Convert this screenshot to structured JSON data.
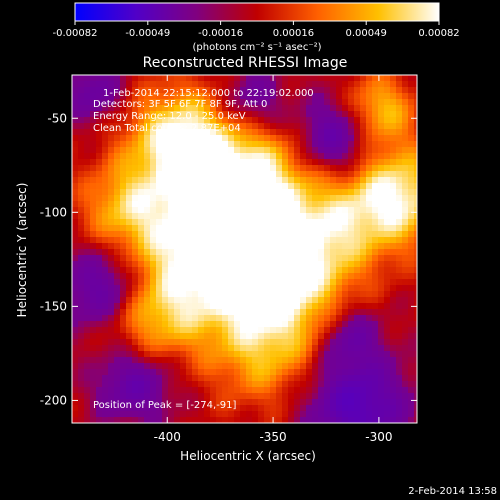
{
  "colorbar": {
    "tick_labels": [
      "-0.00082",
      "-0.00049",
      "-0.00016",
      "0.00016",
      "0.00049",
      "0.00082"
    ],
    "unit_label": "(photons cm⁻² s⁻¹ asec⁻²)",
    "range": [
      -0.00082,
      0.00082
    ],
    "stops": [
      "#0000ff",
      "#5000c8",
      "#800080",
      "#c00000",
      "#ff6000",
      "#ffc000",
      "#ffffff"
    ]
  },
  "chart_data": {
    "type": "heatmap",
    "title": "Reconstructed RHESSI Image",
    "xlabel": "Heliocentric X (arcsec)",
    "ylabel": "Heliocentric Y (arcsec)",
    "xlim": [
      -445,
      -282
    ],
    "ylim": [
      -212,
      -27
    ],
    "x_ticks": [
      -400,
      -350,
      -300
    ],
    "y_ticks": [
      -50,
      -100,
      -150,
      -200
    ],
    "info_lines": [
      "1-Feb-2014 22:15:12.000 to 22:19:02.000",
      "Detectors: 3F 5F 6F 7F 8F 9F, Att 0",
      "Energy Range: 12.0 - 25.0 keV",
      "Clean     Total counts: 2.87E+04"
    ],
    "peak_text": "Position of Peak = [-274,-91]",
    "peak": [
      -274,
      -91
    ]
  },
  "footer": {
    "date": "2-Feb-2014 13:58"
  }
}
